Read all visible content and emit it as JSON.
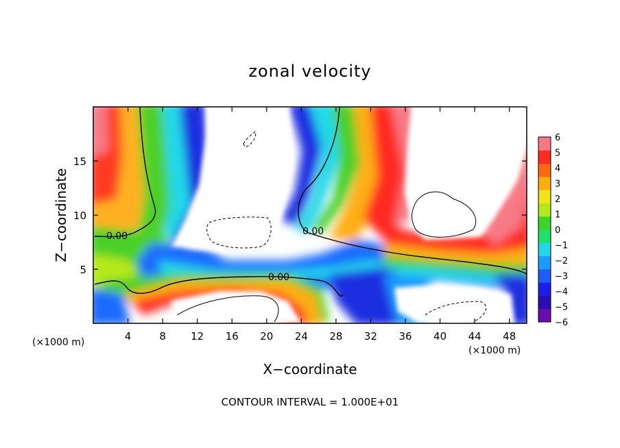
{
  "chart_data": {
    "type": "heatmap",
    "title": "zonal velocity",
    "xlabel": "X−coordinate",
    "ylabel": "Z−coordinate",
    "x_units": "(×1000 m)",
    "y_units": "(×1000 m)",
    "xlim": [
      0,
      50
    ],
    "ylim": [
      0,
      20
    ],
    "x_ticks": [
      4,
      8,
      12,
      16,
      20,
      24,
      28,
      32,
      36,
      40,
      44,
      48
    ],
    "y_ticks": [
      5,
      10,
      15
    ],
    "colorbar": {
      "labels": [
        "6",
        "5",
        "4",
        "3",
        "2",
        "1",
        "0",
        "−1",
        "−2",
        "−3",
        "−4",
        "−5",
        "−6"
      ],
      "min": -6,
      "max": 6,
      "colors": [
        "#6a0dad",
        "#2a0fb0",
        "#1a1ee8",
        "#1e5cff",
        "#1f9bff",
        "#22d8e8",
        "#1fe06a",
        "#3ed22a",
        "#b6e81e",
        "#f2e41c",
        "#ffae12",
        "#ff6a10",
        "#ff2a22",
        "#f57a86"
      ]
    },
    "contour_labels": [
      "0.00",
      "0.00",
      "0.00"
    ],
    "footer": "CONTOUR INTERVAL = 1.000E+01"
  }
}
